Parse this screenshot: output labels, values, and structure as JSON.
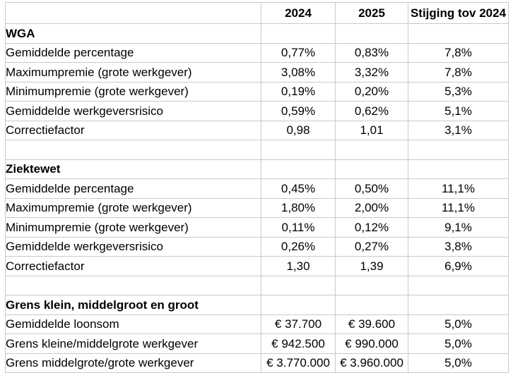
{
  "colors": {
    "background": "#ffffff",
    "gridline": "#c9c9c9",
    "text": "#000000"
  },
  "table": {
    "header": [
      "",
      "2024",
      "2025",
      "Stijging tov 2024"
    ],
    "rows": [
      {
        "type": "section",
        "label": "WGA",
        "values": [
          "",
          "",
          ""
        ]
      },
      {
        "type": "data",
        "label": "Gemiddelde percentage",
        "values": [
          "0,77%",
          "0,83%",
          "7,8%"
        ]
      },
      {
        "type": "data",
        "label": "Maximumpremie (grote werkgever)",
        "values": [
          "3,08%",
          "3,32%",
          "7,8%"
        ]
      },
      {
        "type": "data",
        "label": "Minimumpremie (grote werkgever)",
        "values": [
          "0,19%",
          "0,20%",
          "5,3%"
        ]
      },
      {
        "type": "data",
        "label": "Gemiddelde werkgeversrisico",
        "values": [
          "0,59%",
          "0,62%",
          "5,1%"
        ]
      },
      {
        "type": "data",
        "label": "Correctiefactor",
        "values": [
          "0,98",
          "1,01",
          "3,1%"
        ]
      },
      {
        "type": "empty",
        "label": "",
        "values": [
          "",
          "",
          ""
        ]
      },
      {
        "type": "section",
        "label": "Ziektewet",
        "values": [
          "",
          "",
          ""
        ]
      },
      {
        "type": "data",
        "label": "Gemiddelde percentage",
        "values": [
          "0,45%",
          "0,50%",
          "11,1%"
        ]
      },
      {
        "type": "data",
        "label": "Maximumpremie (grote werkgever)",
        "values": [
          "1,80%",
          "2,00%",
          "11,1%"
        ]
      },
      {
        "type": "data",
        "label": "Minimumpremie (grote werkgever)",
        "values": [
          "0,11%",
          "0,12%",
          "9,1%"
        ]
      },
      {
        "type": "data",
        "label": "Gemiddelde werkgeversrisico",
        "values": [
          "0,26%",
          "0,27%",
          "3,8%"
        ]
      },
      {
        "type": "data",
        "label": "Correctiefactor",
        "values": [
          "1,30",
          "1,39",
          "6,9%"
        ]
      },
      {
        "type": "empty",
        "label": "",
        "values": [
          "",
          "",
          ""
        ]
      },
      {
        "type": "section",
        "label": "Grens klein, middelgroot en groot",
        "values": [
          "",
          "",
          ""
        ]
      },
      {
        "type": "data",
        "label": "Gemiddelde loonsom",
        "values": [
          "€ 37.700",
          "€ 39.600",
          "5,0%"
        ]
      },
      {
        "type": "data",
        "label": "Grens kleine/middelgrote werkgever",
        "values": [
          "€ 942.500",
          "€ 990.000",
          "5,0%"
        ]
      },
      {
        "type": "data",
        "label": "Grens middelgrote/grote werkgever",
        "values": [
          "€ 3.770.000",
          "€ 3.960.000",
          "5,0%"
        ]
      }
    ]
  }
}
